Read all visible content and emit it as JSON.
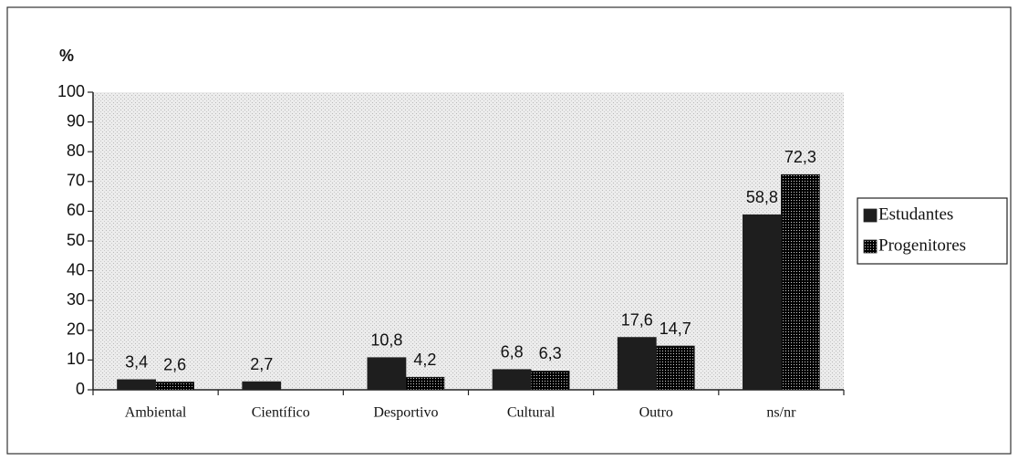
{
  "chart_data": {
    "type": "bar",
    "ylabel": "%",
    "categories": [
      "Ambiental",
      "Científico",
      "Desportivo",
      "Cultural",
      "Outro",
      "ns/nr"
    ],
    "series": [
      {
        "name": "Estudantes",
        "color": "#1e1e1e",
        "values": [
          3.4,
          2.7,
          10.8,
          6.8,
          17.6,
          58.8
        ],
        "value_labels": [
          "3,4",
          "2,7",
          "10,8",
          "6,8",
          "17,6",
          "58,8"
        ]
      },
      {
        "name": "Progenitores",
        "color": "#8c8c8c",
        "values": [
          2.6,
          null,
          4.2,
          6.3,
          14.7,
          72.3
        ],
        "value_labels": [
          "2,6",
          null,
          "4,2",
          "6,3",
          "14,7",
          "72,3"
        ]
      }
    ],
    "ylim": [
      0,
      100
    ],
    "yticks": [
      0,
      10,
      20,
      30,
      40,
      50,
      60,
      70,
      80,
      90,
      100
    ],
    "grid": false,
    "legend": "right"
  }
}
